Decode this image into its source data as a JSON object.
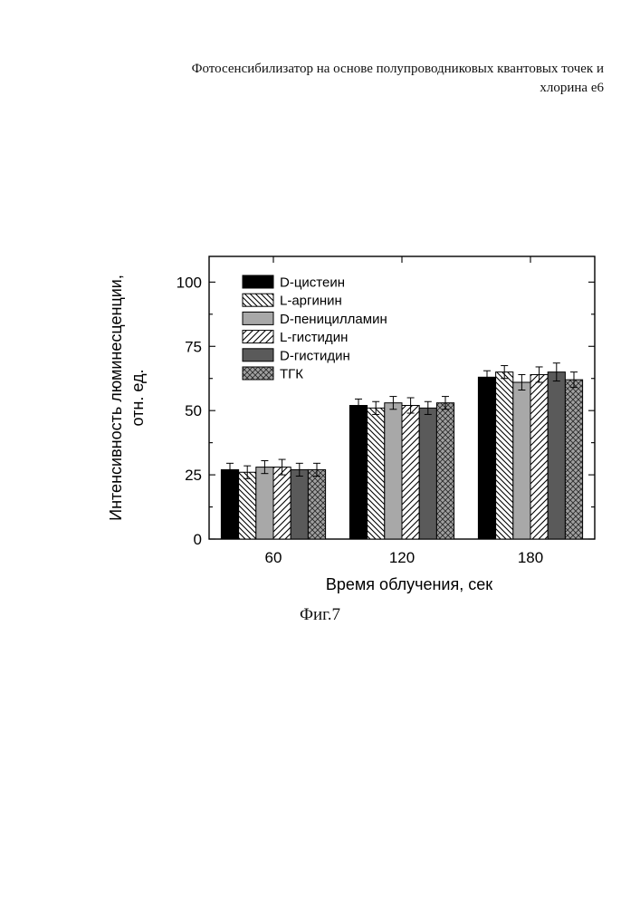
{
  "header": {
    "line1": "Фотосенсибилизатор на основе полупроводниковых квантовых точек и",
    "line2": "хлорина е6"
  },
  "figure_caption": "Фиг.7",
  "chart_data": {
    "type": "bar",
    "title": "",
    "xlabel": "Время облучения, сек",
    "ylabel_lines": [
      "Интенсивность люминесценции,",
      "отн. ед."
    ],
    "categories": [
      "60",
      "120",
      "180"
    ],
    "ylim": [
      0,
      110
    ],
    "yticks": [
      0,
      25,
      50,
      75,
      100
    ],
    "grid": false,
    "legend_position": "top-left",
    "series": [
      {
        "name": "D-цистеин",
        "values": [
          27,
          52,
          63
        ],
        "errors": [
          2.5,
          2.5,
          2.5
        ],
        "pattern": "solid-black",
        "color": "#000000"
      },
      {
        "name": "L-аргинин",
        "values": [
          26,
          51,
          65
        ],
        "errors": [
          2.5,
          2.5,
          2.5
        ],
        "pattern": "diag-back",
        "color": "#000000"
      },
      {
        "name": "D-пеницилламин",
        "values": [
          28,
          53,
          61
        ],
        "errors": [
          2.5,
          2.5,
          3
        ],
        "pattern": "solid-light-gray",
        "color": "#a8a8a8"
      },
      {
        "name": "L-гистидин",
        "values": [
          28,
          52,
          64
        ],
        "errors": [
          3,
          3,
          3
        ],
        "pattern": "diag-forward",
        "color": "#000000"
      },
      {
        "name": "D-гистидин",
        "values": [
          27,
          51,
          65
        ],
        "errors": [
          2.5,
          2.5,
          3.5
        ],
        "pattern": "solid-dark-gray",
        "color": "#5a5a5a"
      },
      {
        "name": "ТГК",
        "values": [
          27,
          53,
          62
        ],
        "errors": [
          2.5,
          2.5,
          3
        ],
        "pattern": "crosshatch",
        "color": "#888888"
      }
    ]
  }
}
